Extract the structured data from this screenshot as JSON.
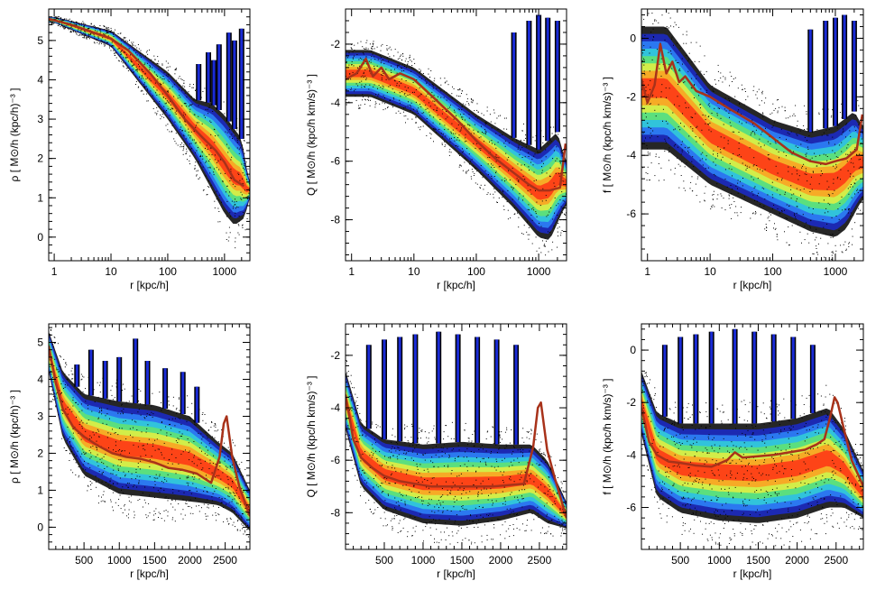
{
  "figure": {
    "density_colors": [
      "#000000",
      "#1a2bd6",
      "#2f8cff",
      "#33d6d6",
      "#66e666",
      "#f0f03c",
      "#ff9a1e",
      "#ff2a14"
    ],
    "median_color": "#a8321a"
  },
  "chart_data": [
    {
      "id": "rho_log",
      "type": "scatter",
      "xscale": "log",
      "xlim": [
        0.8,
        2800
      ],
      "ylim": [
        -0.6,
        5.8
      ],
      "xticks": [
        1,
        10,
        100,
        1000
      ],
      "xtick_labels": [
        "1",
        "10",
        "100",
        "1000"
      ],
      "yticks": [
        0,
        1,
        2,
        3,
        4,
        5
      ],
      "ytick_labels": [
        "0",
        "1",
        "2",
        "3",
        "4",
        "5"
      ],
      "xlabel": "r [kpc/h]",
      "ylabel": "ρ [ M⊙/h (kpc/h)⁻³ ]",
      "median": {
        "x": [
          0.8,
          2,
          5,
          10,
          20,
          50,
          100,
          200,
          400,
          700,
          1000,
          1500,
          2200
        ],
        "y": [
          5.55,
          5.4,
          5.2,
          5.05,
          4.75,
          4.15,
          3.6,
          3.0,
          2.55,
          2.2,
          1.9,
          1.45,
          1.3
        ]
      },
      "density": {
        "upper": [
          [
            1,
            5.6
          ],
          [
            10,
            5.25
          ],
          [
            100,
            4.2
          ],
          [
            300,
            3.5
          ],
          [
            600,
            3.4
          ],
          [
            1000,
            3.1
          ],
          [
            2000,
            2.5
          ],
          [
            2700,
            1.4
          ]
        ],
        "lower": [
          [
            1,
            5.45
          ],
          [
            10,
            4.85
          ],
          [
            100,
            3.0
          ],
          [
            300,
            2.0
          ],
          [
            600,
            1.2
          ],
          [
            1000,
            0.6
          ],
          [
            1500,
            0.3
          ],
          [
            2300,
            0.5
          ],
          [
            2700,
            1.0
          ]
        ],
        "spikes": [
          [
            350,
            4.4
          ],
          [
            520,
            4.7
          ],
          [
            650,
            4.5
          ],
          [
            800,
            4.9
          ],
          [
            1200,
            5.2
          ],
          [
            1500,
            5.0
          ],
          [
            2000,
            5.3
          ]
        ]
      }
    },
    {
      "id": "Q_log",
      "type": "scatter",
      "xscale": "log",
      "xlim": [
        0.8,
        2800
      ],
      "ylim": [
        -9.4,
        -0.8
      ],
      "xticks": [
        1,
        10,
        100,
        1000
      ],
      "xtick_labels": [
        "1",
        "10",
        "100",
        "1000"
      ],
      "yticks": [
        -8,
        -6,
        -4,
        -2
      ],
      "ytick_labels": [
        "-8",
        "-6",
        "-4",
        "-2"
      ],
      "xlabel": "r [kpc/h]",
      "ylabel": "Q [ M⊙/h (kpc/h km/s)⁻³ ]",
      "median": {
        "x": [
          0.8,
          1.2,
          1.7,
          2.2,
          3,
          4,
          6,
          10,
          20,
          50,
          100,
          200,
          400,
          700,
          1000,
          1500,
          2200,
          2700
        ],
        "y": [
          -3.2,
          -3.0,
          -2.5,
          -3.1,
          -2.8,
          -3.2,
          -3.0,
          -3.2,
          -3.8,
          -4.6,
          -5.3,
          -5.9,
          -6.4,
          -6.8,
          -7.0,
          -7.0,
          -6.9,
          -5.4
        ]
      },
      "density": {
        "upper": [
          [
            2,
            -2.2
          ],
          [
            10,
            -2.8
          ],
          [
            100,
            -4.4
          ],
          [
            400,
            -5.2
          ],
          [
            1000,
            -5.6
          ],
          [
            2000,
            -5.0
          ],
          [
            2700,
            -6.0
          ]
        ],
        "lower": [
          [
            2,
            -3.8
          ],
          [
            10,
            -4.4
          ],
          [
            100,
            -6.3
          ],
          [
            400,
            -7.6
          ],
          [
            1000,
            -8.6
          ],
          [
            1500,
            -8.7
          ],
          [
            2700,
            -7.5
          ]
        ],
        "spikes": [
          [
            400,
            -1.6
          ],
          [
            700,
            -1.2
          ],
          [
            1000,
            -1.0
          ],
          [
            1400,
            -1.1
          ],
          [
            2000,
            -1.2
          ]
        ]
      }
    },
    {
      "id": "f_log",
      "type": "scatter",
      "xscale": "log",
      "xlim": [
        0.8,
        2800
      ],
      "ylim": [
        -7.6,
        1.0
      ],
      "xticks": [
        1,
        10,
        100,
        1000
      ],
      "xtick_labels": [
        "1",
        "10",
        "100",
        "1000"
      ],
      "yticks": [
        -6,
        -4,
        -2,
        0
      ],
      "ytick_labels": [
        "-6",
        "-4",
        "-2",
        "0"
      ],
      "xlabel": "r [kpc/h]",
      "ylabel": "f [ M⊙/h (kpc/h km/s)⁻³ ]",
      "median": {
        "x": [
          0.8,
          1.0,
          1.3,
          1.6,
          2.0,
          2.5,
          3.2,
          4,
          6,
          10,
          20,
          50,
          100,
          200,
          400,
          700,
          1000,
          1500,
          2200,
          2700
        ],
        "y": [
          -1.4,
          -2.2,
          -1.6,
          -0.2,
          -1.2,
          -0.8,
          -1.5,
          -1.3,
          -1.8,
          -2.0,
          -2.4,
          -2.9,
          -3.4,
          -3.9,
          -4.2,
          -4.3,
          -4.2,
          -4.1,
          -3.8,
          -2.6
        ]
      },
      "density": {
        "upper": [
          [
            2,
            0.4
          ],
          [
            10,
            -1.6
          ],
          [
            100,
            -2.8
          ],
          [
            400,
            -3.2
          ],
          [
            1000,
            -3.0
          ],
          [
            2000,
            -2.5
          ],
          [
            2700,
            -3.0
          ]
        ],
        "lower": [
          [
            2,
            -3.8
          ],
          [
            10,
            -5.0
          ],
          [
            100,
            -6.0
          ],
          [
            400,
            -6.6
          ],
          [
            1000,
            -6.8
          ],
          [
            1500,
            -6.5
          ],
          [
            2700,
            -5.5
          ]
        ],
        "spikes": [
          [
            400,
            0.3
          ],
          [
            700,
            0.6
          ],
          [
            1000,
            0.7
          ],
          [
            1400,
            0.8
          ],
          [
            2000,
            0.6
          ]
        ]
      }
    },
    {
      "id": "rho_lin",
      "type": "scatter",
      "xscale": "linear",
      "xlim": [
        0,
        2850
      ],
      "ylim": [
        -0.6,
        5.5
      ],
      "xticks": [
        500,
        1000,
        1500,
        2000,
        2500
      ],
      "xtick_labels": [
        "500",
        "1000",
        "1500",
        "2000",
        "2500"
      ],
      "yticks": [
        0,
        1,
        2,
        3,
        4,
        5
      ],
      "ytick_labels": [
        "0",
        "1",
        "2",
        "3",
        "4",
        "5"
      ],
      "xlabel": "r [kpc/h]",
      "ylabel": "ρ [ M⊙/h (kpc/h)⁻³ ]",
      "median": {
        "x": [
          0,
          100,
          200,
          350,
          500,
          700,
          900,
          1100,
          1300,
          1500,
          1700,
          1900,
          2100,
          2300,
          2420,
          2480,
          2520,
          2600,
          2700,
          2850
        ],
        "y": [
          4.9,
          3.9,
          3.2,
          2.7,
          2.45,
          2.2,
          2.0,
          1.9,
          1.85,
          1.75,
          1.6,
          1.55,
          1.45,
          1.2,
          1.9,
          2.8,
          3.0,
          1.9,
          1.1,
          0.3
        ]
      },
      "density": {
        "upper": [
          [
            0,
            5.3
          ],
          [
            200,
            4.2
          ],
          [
            500,
            3.6
          ],
          [
            1000,
            3.4
          ],
          [
            1500,
            3.3
          ],
          [
            2000,
            3.0
          ],
          [
            2400,
            2.3
          ],
          [
            2600,
            2.0
          ],
          [
            2850,
            1.0
          ]
        ],
        "lower": [
          [
            0,
            4.2
          ],
          [
            200,
            2.4
          ],
          [
            500,
            1.4
          ],
          [
            1000,
            0.9
          ],
          [
            1500,
            0.8
          ],
          [
            2000,
            0.7
          ],
          [
            2400,
            0.6
          ],
          [
            2600,
            0.4
          ],
          [
            2850,
            -0.1
          ]
        ],
        "spikes": [
          [
            400,
            4.4
          ],
          [
            600,
            4.8
          ],
          [
            800,
            4.5
          ],
          [
            1000,
            4.6
          ],
          [
            1230,
            5.1
          ],
          [
            1400,
            4.5
          ],
          [
            1650,
            4.3
          ],
          [
            1900,
            4.2
          ],
          [
            2100,
            3.8
          ]
        ]
      }
    },
    {
      "id": "Q_lin",
      "type": "scatter",
      "xscale": "linear",
      "xlim": [
        0,
        2850
      ],
      "ylim": [
        -9.4,
        -0.8
      ],
      "xticks": [
        500,
        1000,
        1500,
        2000,
        2500
      ],
      "xtick_labels": [
        "500",
        "1000",
        "1500",
        "2000",
        "2500"
      ],
      "yticks": [
        -8,
        -6,
        -4,
        -2
      ],
      "ytick_labels": [
        "-8",
        "-6",
        "-4",
        "-2"
      ],
      "xlabel": "r [kpc/h]",
      "ylabel": "Q [ M⊙/h (kpc/h km/s)⁻³ ]",
      "median": {
        "x": [
          0,
          100,
          200,
          350,
          500,
          700,
          900,
          1100,
          1300,
          1500,
          1700,
          1900,
          2100,
          2300,
          2420,
          2480,
          2520,
          2600,
          2700,
          2850
        ],
        "y": [
          -3.5,
          -5.2,
          -5.9,
          -6.3,
          -6.6,
          -6.8,
          -6.9,
          -7.0,
          -7.0,
          -7.0,
          -7.0,
          -7.0,
          -6.95,
          -6.9,
          -5.5,
          -4.0,
          -3.8,
          -5.6,
          -6.7,
          -8.2
        ]
      },
      "density": {
        "upper": [
          [
            0,
            -2.6
          ],
          [
            200,
            -4.6
          ],
          [
            500,
            -5.2
          ],
          [
            1000,
            -5.4
          ],
          [
            1500,
            -5.3
          ],
          [
            2000,
            -5.4
          ],
          [
            2400,
            -5.4
          ],
          [
            2600,
            -6.0
          ],
          [
            2850,
            -7.6
          ]
        ],
        "lower": [
          [
            0,
            -4.8
          ],
          [
            200,
            -7.0
          ],
          [
            500,
            -7.9
          ],
          [
            1000,
            -8.4
          ],
          [
            1500,
            -8.5
          ],
          [
            2000,
            -8.3
          ],
          [
            2400,
            -8.0
          ],
          [
            2600,
            -8.4
          ],
          [
            2850,
            -8.6
          ]
        ],
        "spikes": [
          [
            300,
            -1.6
          ],
          [
            500,
            -1.4
          ],
          [
            700,
            -1.3
          ],
          [
            900,
            -1.2
          ],
          [
            1200,
            -1.1
          ],
          [
            1450,
            -1.2
          ],
          [
            1700,
            -1.3
          ],
          [
            1950,
            -1.4
          ],
          [
            2200,
            -1.6
          ]
        ]
      }
    },
    {
      "id": "f_lin",
      "type": "scatter",
      "xscale": "linear",
      "xlim": [
        0,
        2850
      ],
      "ylim": [
        -7.6,
        1.0
      ],
      "xticks": [
        500,
        1000,
        1500,
        2000,
        2500
      ],
      "xtick_labels": [
        "500",
        "1000",
        "1500",
        "2000",
        "2500"
      ],
      "yticks": [
        -6,
        -4,
        -2,
        0
      ],
      "ytick_labels": [
        "-6",
        "-4",
        "-2",
        "0"
      ],
      "xlabel": "r [kpc/h]",
      "ylabel": "f [ M⊙/h (kpc/h km/s)⁻³ ]",
      "median": {
        "x": [
          0,
          100,
          200,
          350,
          500,
          700,
          900,
          1100,
          1200,
          1300,
          1500,
          1700,
          1900,
          2100,
          2250,
          2350,
          2420,
          2480,
          2520,
          2600,
          2700,
          2850
        ],
        "y": [
          -2.2,
          -3.5,
          -4.0,
          -4.25,
          -4.3,
          -4.4,
          -4.45,
          -4.2,
          -3.9,
          -4.1,
          -4.05,
          -4.0,
          -3.9,
          -3.8,
          -3.6,
          -3.4,
          -2.6,
          -1.8,
          -2.0,
          -3.0,
          -4.2,
          -5.2
        ]
      },
      "density": {
        "upper": [
          [
            0,
            -0.8
          ],
          [
            200,
            -2.4
          ],
          [
            500,
            -2.8
          ],
          [
            1000,
            -2.8
          ],
          [
            1500,
            -2.8
          ],
          [
            2000,
            -2.6
          ],
          [
            2400,
            -2.2
          ],
          [
            2600,
            -3.0
          ],
          [
            2850,
            -4.6
          ]
        ],
        "lower": [
          [
            0,
            -3.2
          ],
          [
            200,
            -5.6
          ],
          [
            500,
            -6.2
          ],
          [
            1000,
            -6.5
          ],
          [
            1500,
            -6.6
          ],
          [
            2000,
            -6.4
          ],
          [
            2400,
            -6.0
          ],
          [
            2600,
            -6.0
          ],
          [
            2850,
            -6.4
          ]
        ],
        "spikes": [
          [
            300,
            0.2
          ],
          [
            500,
            0.5
          ],
          [
            700,
            0.6
          ],
          [
            900,
            0.7
          ],
          [
            1200,
            0.8
          ],
          [
            1450,
            0.7
          ],
          [
            1700,
            0.6
          ],
          [
            1950,
            0.5
          ],
          [
            2200,
            0.2
          ]
        ]
      }
    }
  ]
}
